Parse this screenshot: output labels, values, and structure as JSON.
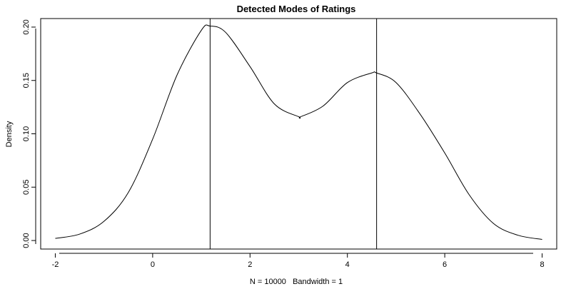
{
  "chart_data": {
    "type": "line",
    "title": "Detected Modes of Ratings",
    "xlabel": "N = 10000   Bandwidth = 1",
    "ylabel": "Density",
    "xlim": [
      -2.3,
      8.3
    ],
    "ylim": [
      -0.008,
      0.208
    ],
    "x_ticks": [
      -2,
      0,
      2,
      4,
      6,
      8
    ],
    "y_ticks": [
      0.0,
      0.05,
      0.1,
      0.15,
      0.2
    ],
    "y_tick_labels": [
      "0.00",
      "0.05",
      "0.10",
      "0.15",
      "0.20"
    ],
    "grid": false,
    "series": [
      {
        "x": [
          -2,
          -1.5,
          -1,
          -0.5,
          0,
          0.5,
          1,
          1.18,
          1.5,
          2,
          2.5,
          3,
          3.04,
          3.5,
          4,
          4.5,
          4.6,
          5,
          5.5,
          6,
          6.5,
          7,
          7.5,
          8
        ],
        "y": [
          0.002,
          0.006,
          0.018,
          0.045,
          0.095,
          0.155,
          0.197,
          0.201,
          0.195,
          0.163,
          0.128,
          0.116,
          0.116,
          0.126,
          0.148,
          0.157,
          0.157,
          0.148,
          0.118,
          0.082,
          0.043,
          0.016,
          0.005,
          0.001
        ]
      }
    ],
    "modes": [
      1.18,
      4.6
    ]
  }
}
